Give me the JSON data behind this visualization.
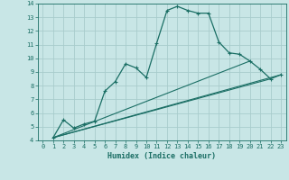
{
  "xlabel": "Humidex (Indice chaleur)",
  "xlim": [
    -0.5,
    23.5
  ],
  "ylim": [
    4,
    14
  ],
  "xticks": [
    0,
    1,
    2,
    3,
    4,
    5,
    6,
    7,
    8,
    9,
    10,
    11,
    12,
    13,
    14,
    15,
    16,
    17,
    18,
    19,
    20,
    21,
    22,
    23
  ],
  "yticks": [
    4,
    5,
    6,
    7,
    8,
    9,
    10,
    11,
    12,
    13,
    14
  ],
  "bg_color": "#c8e6e6",
  "line_color": "#1a6e64",
  "grid_color": "#a8cccc",
  "lines": [
    {
      "x": [
        1,
        2,
        3,
        4,
        5,
        6,
        7,
        8,
        9,
        10,
        11,
        12,
        13,
        14,
        15,
        16,
        17,
        18,
        19,
        20,
        21,
        22,
        23
      ],
      "y": [
        4.2,
        5.5,
        4.9,
        5.2,
        5.4,
        7.6,
        8.3,
        9.6,
        9.3,
        8.6,
        11.1,
        13.5,
        13.8,
        13.5,
        13.3,
        13.3,
        11.2,
        10.4,
        10.3,
        9.8,
        9.2,
        8.5,
        8.8
      ],
      "marker": true
    },
    {
      "x": [
        1,
        20
      ],
      "y": [
        4.2,
        9.8
      ],
      "marker": false
    },
    {
      "x": [
        1,
        22
      ],
      "y": [
        4.2,
        8.5
      ],
      "marker": false
    },
    {
      "x": [
        1,
        23
      ],
      "y": [
        4.2,
        8.8
      ],
      "marker": false
    }
  ]
}
